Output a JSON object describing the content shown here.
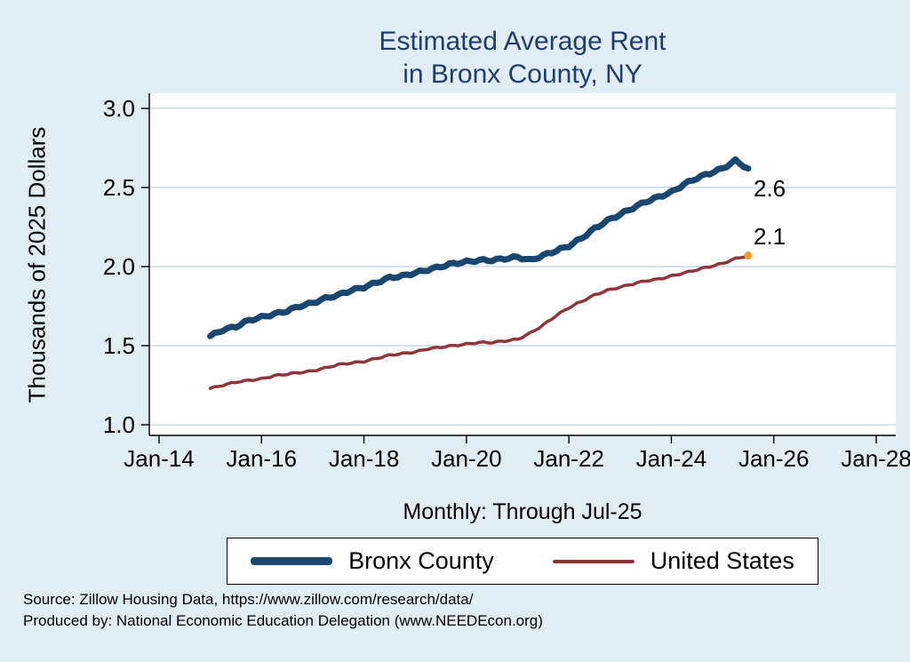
{
  "title": {
    "line1": "Estimated Average Rent",
    "line2": "in Bronx County, NY"
  },
  "note": "Monthly: Through Jul-25",
  "axes": {
    "y_label": "Thousands of 2025 Dollars"
  },
  "annotations": {
    "bronx_end": "2.6",
    "us_end": "2.1"
  },
  "legend": {
    "items": [
      {
        "label": "Bronx County",
        "color": "#1a476f"
      },
      {
        "label": "United States",
        "color": "#90353b"
      }
    ]
  },
  "source": {
    "line1": "Source: Zillow Housing Data, https://www.zillow.com/research/data/",
    "line2": "Produced by: National Economic Education Delegation (www.NEEDEcon.org)"
  },
  "colors": {
    "background": "#e1edf5",
    "plot_bg": "#ffffff",
    "grid": "#c9dcea",
    "axis": "#000000",
    "title": "#1f3d6d",
    "bronx_line": "#1a476f",
    "us_line": "#90353b",
    "end_marker": "#f39c2d"
  },
  "chart_data": {
    "type": "line",
    "title": "Estimated Average Rent in Bronx County, NY",
    "xlabel": "",
    "ylabel": "Thousands of 2025 Dollars",
    "note": "Monthly: Through Jul-25",
    "x_unit": "decimal_year",
    "xlim": [
      2014,
      2028.3
    ],
    "ylim": [
      1.0,
      3.0
    ],
    "grid": true,
    "legend_position": "bottom",
    "x_tick_years": [
      2014,
      2016,
      2018,
      2020,
      2022,
      2024,
      2026,
      2028
    ],
    "x_tick_labels": [
      "Jan-14",
      "Jan-16",
      "Jan-18",
      "Jan-20",
      "Jan-22",
      "Jan-24",
      "Jan-26",
      "Jan-28"
    ],
    "y_tick_values": [
      1.0,
      1.5,
      2.0,
      2.5,
      3.0
    ],
    "y_tick_labels": [
      "1.0",
      "1.5",
      "2.0",
      "2.5",
      "3.0"
    ],
    "x": [
      2015,
      2015.25,
      2015.5,
      2015.75,
      2016,
      2016.25,
      2016.5,
      2016.75,
      2017,
      2017.25,
      2017.5,
      2017.75,
      2018,
      2018.25,
      2018.5,
      2018.75,
      2019,
      2019.25,
      2019.5,
      2019.75,
      2020,
      2020.25,
      2020.5,
      2020.75,
      2021,
      2021.25,
      2021.5,
      2021.75,
      2022,
      2022.25,
      2022.5,
      2022.75,
      2023,
      2023.25,
      2023.5,
      2023.75,
      2024,
      2024.25,
      2024.5,
      2024.75,
      2025,
      2025.25,
      2025.5
    ],
    "series": [
      {
        "name": "Bronx County",
        "color": "#1a476f",
        "width": 7,
        "end_label": "2.6",
        "values": [
          1.56,
          1.6,
          1.62,
          1.66,
          1.68,
          1.7,
          1.72,
          1.75,
          1.77,
          1.8,
          1.82,
          1.85,
          1.87,
          1.9,
          1.93,
          1.94,
          1.96,
          1.98,
          2.0,
          2.02,
          2.03,
          2.04,
          2.04,
          2.05,
          2.06,
          2.04,
          2.07,
          2.1,
          2.13,
          2.18,
          2.24,
          2.29,
          2.33,
          2.37,
          2.41,
          2.44,
          2.47,
          2.52,
          2.56,
          2.59,
          2.62,
          2.67,
          2.62
        ]
      },
      {
        "name": "United States",
        "color": "#90353b",
        "width": 3.5,
        "end_label": "2.1",
        "values": [
          1.23,
          1.25,
          1.27,
          1.28,
          1.29,
          1.31,
          1.32,
          1.33,
          1.34,
          1.36,
          1.38,
          1.39,
          1.4,
          1.42,
          1.44,
          1.45,
          1.46,
          1.48,
          1.49,
          1.5,
          1.51,
          1.52,
          1.52,
          1.53,
          1.54,
          1.58,
          1.63,
          1.69,
          1.74,
          1.78,
          1.82,
          1.85,
          1.87,
          1.89,
          1.91,
          1.92,
          1.94,
          1.96,
          1.98,
          2.0,
          2.02,
          2.05,
          2.07
        ]
      }
    ]
  }
}
